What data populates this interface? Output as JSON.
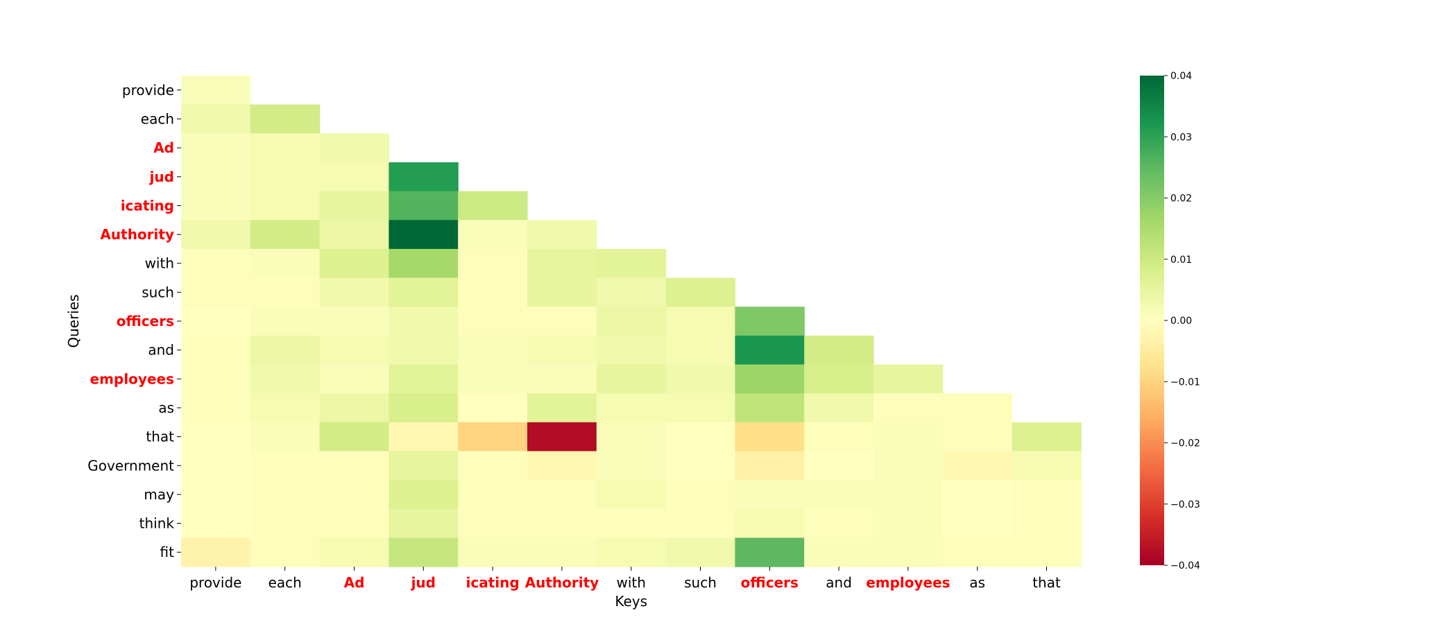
{
  "chart_data": {
    "type": "heatmap",
    "title": "",
    "xlabel": "Keys",
    "ylabel": "Queries",
    "x_labels": [
      "provide",
      "each",
      "Ad",
      "jud",
      "icating",
      "Authority",
      "with",
      "such",
      "officers",
      "and",
      "employees",
      "as",
      "that"
    ],
    "y_labels": [
      "provide",
      "each",
      "Ad",
      "jud",
      "icating",
      "Authority",
      "with",
      "such",
      "officers",
      "and",
      "employees",
      "as",
      "that",
      "Government",
      "may",
      "think",
      "fit"
    ],
    "highlighted_tokens": [
      "Ad",
      "jud",
      "icating",
      "Authority",
      "officers",
      "employees"
    ],
    "highlight_color": "#ff0000",
    "mask": "upper-triangle (query i attends to keys 0..i)",
    "colormap": "RdYlGn",
    "vmin": -0.04,
    "vmax": 0.04,
    "colorbar_ticks": [
      "0.04",
      "0.03",
      "0.02",
      "0.01",
      "0.00",
      "−0.01",
      "−0.02",
      "−0.03",
      "−0.04"
    ],
    "matrix": [
      [
        0.001
      ],
      [
        0.003,
        0.009
      ],
      [
        0.001,
        0.002,
        0.003
      ],
      [
        0.001,
        0.002,
        0.002,
        0.031
      ],
      [
        0.001,
        0.002,
        0.005,
        0.026,
        0.01
      ],
      [
        0.003,
        0.009,
        0.004,
        0.04,
        0.001,
        0.003
      ],
      [
        0.0005,
        0.001,
        0.007,
        0.016,
        0.0005,
        0.005,
        0.006
      ],
      [
        0.0005,
        0.0005,
        0.003,
        0.006,
        0.0005,
        0.005,
        0.003,
        0.007
      ],
      [
        0.0,
        0.001,
        0.001,
        0.003,
        0.0005,
        0.0005,
        0.004,
        0.002,
        0.021
      ],
      [
        0.0005,
        0.004,
        0.002,
        0.003,
        0.001,
        0.002,
        0.003,
        0.002,
        0.032,
        0.009
      ],
      [
        0.0005,
        0.003,
        0.001,
        0.006,
        0.001,
        0.001,
        0.005,
        0.003,
        0.017,
        0.008,
        0.005
      ],
      [
        0.0005,
        0.002,
        0.004,
        0.008,
        0.0,
        0.006,
        0.002,
        0.002,
        0.012,
        0.003,
        0.0005,
        0.0005
      ],
      [
        0.0,
        0.001,
        0.009,
        -0.002,
        -0.01,
        -0.038,
        0.001,
        0.0,
        -0.008,
        0.0005,
        0.001,
        0.0005,
        0.007
      ],
      [
        0.0,
        0.0005,
        0.0005,
        0.005,
        -0.0005,
        -0.002,
        0.001,
        0.0,
        -0.004,
        0.0,
        0.001,
        -0.002,
        0.002
      ],
      [
        0.0,
        0.0005,
        0.0005,
        0.007,
        0.0005,
        0.0005,
        0.002,
        0.0005,
        0.001,
        0.001,
        0.001,
        0.0,
        0.0005
      ],
      [
        0.0,
        0.0005,
        0.0005,
        0.005,
        0.0005,
        0.0005,
        0.0005,
        0.0005,
        0.002,
        0.0005,
        0.001,
        0.0,
        0.0005
      ],
      [
        -0.003,
        0.0005,
        0.002,
        0.011,
        0.001,
        0.001,
        0.002,
        0.003,
        0.025,
        0.001,
        0.001,
        0.0005,
        0.0005
      ]
    ]
  }
}
